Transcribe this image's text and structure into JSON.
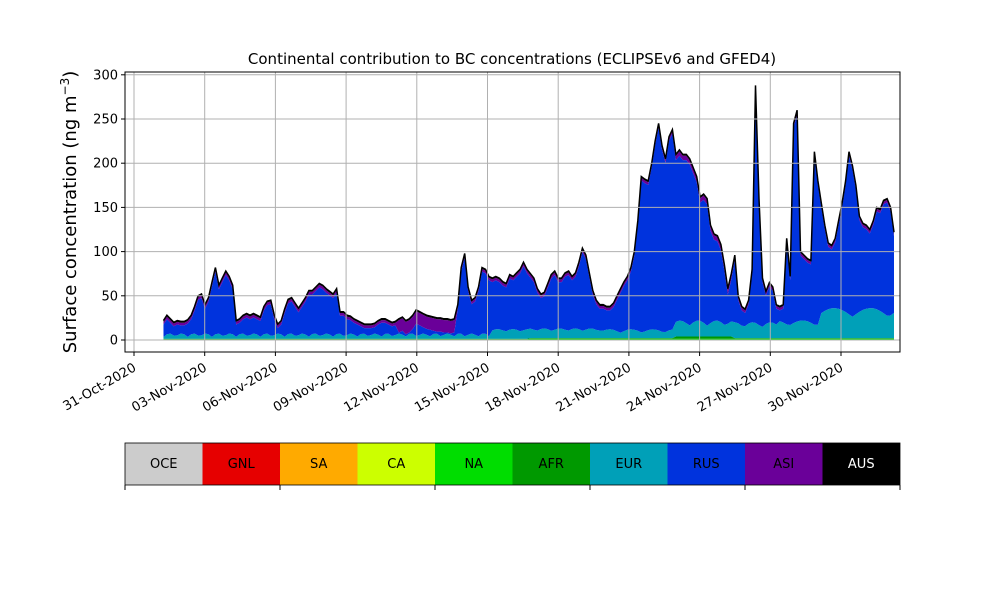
{
  "chart_data": {
    "type": "area",
    "stacked": true,
    "title": "Continental contribution to BC concentrations (ECLIPSEv6 and GFED4)",
    "ylabel": "Surface concentration (ng m",
    "ylabel_sup": "−3",
    "ylabel_close": ")",
    "xlabel": "",
    "ylim": [
      -15,
      305
    ],
    "yticks": [
      0,
      50,
      100,
      150,
      200,
      250,
      300
    ],
    "xlim": [
      "2020-10-31",
      "2020-12-03"
    ],
    "xticks": [
      "31-Oct-2020",
      "03-Nov-2020",
      "06-Nov-2020",
      "09-Nov-2020",
      "12-Nov-2020",
      "15-Nov-2020",
      "18-Nov-2020",
      "21-Nov-2020",
      "24-Nov-2020",
      "27-Nov-2020",
      "30-Nov-2020"
    ],
    "grid": true,
    "x_start": "2020-11-01 06:00",
    "x_end": "2020-12-02 06:00",
    "legend_placement": "below",
    "legend": [
      {
        "name": "OCE",
        "color": "#cccccc",
        "text_color": "#000000"
      },
      {
        "name": "GNL",
        "color": "#e60000",
        "text_color": "#000000"
      },
      {
        "name": "SA",
        "color": "#ffaa00",
        "text_color": "#000000"
      },
      {
        "name": "CA",
        "color": "#ccff00",
        "text_color": "#000000"
      },
      {
        "name": "NA",
        "color": "#00dd00",
        "text_color": "#000000"
      },
      {
        "name": "AFR",
        "color": "#009900",
        "text_color": "#000000"
      },
      {
        "name": "EUR",
        "color": "#00a0b8",
        "text_color": "#000000"
      },
      {
        "name": "RUS",
        "color": "#0033dd",
        "text_color": "#000000"
      },
      {
        "name": "ASI",
        "color": "#6a0099",
        "text_color": "#000000"
      },
      {
        "name": "AUS",
        "color": "#000000",
        "text_color": "#ffffff"
      }
    ],
    "total": [
      22,
      28,
      24,
      20,
      22,
      21,
      21,
      23,
      28,
      38,
      50,
      52,
      40,
      48,
      65,
      82,
      62,
      70,
      78,
      72,
      62,
      22,
      24,
      28,
      30,
      28,
      30,
      28,
      26,
      38,
      44,
      45,
      28,
      18,
      22,
      35,
      46,
      48,
      42,
      36,
      42,
      48,
      56,
      56,
      60,
      64,
      62,
      58,
      55,
      52,
      58,
      32,
      32,
      28,
      27,
      24,
      22,
      20,
      18,
      18,
      18,
      19,
      22,
      24,
      24,
      22,
      20,
      21,
      24,
      26,
      22,
      24,
      28,
      34,
      32,
      30,
      28,
      27,
      26,
      25,
      25,
      24,
      24,
      23,
      24,
      40,
      82,
      98,
      60,
      45,
      48,
      60,
      82,
      80,
      72,
      70,
      72,
      70,
      66,
      64,
      74,
      72,
      76,
      80,
      88,
      80,
      75,
      70,
      58,
      52,
      54,
      64,
      74,
      78,
      70,
      70,
      76,
      78,
      72,
      76,
      88,
      104,
      96,
      76,
      56,
      45,
      40,
      40,
      38,
      38,
      42,
      50,
      58,
      66,
      72,
      82,
      100,
      135,
      185,
      182,
      180,
      200,
      225,
      245,
      220,
      205,
      230,
      238,
      210,
      215,
      210,
      210,
      205,
      195,
      185,
      162,
      165,
      160,
      130,
      120,
      118,
      108,
      85,
      58,
      75,
      96,
      50,
      38,
      35,
      45,
      80,
      288,
      160,
      70,
      55,
      65,
      60,
      40,
      38,
      40,
      115,
      72,
      245,
      260,
      100,
      96,
      92,
      90,
      213,
      180,
      155,
      130,
      110,
      107,
      115,
      135,
      155,
      180,
      213,
      197,
      175,
      140,
      132,
      130,
      125,
      135,
      150,
      148,
      158,
      160,
      150,
      122
    ]
  }
}
